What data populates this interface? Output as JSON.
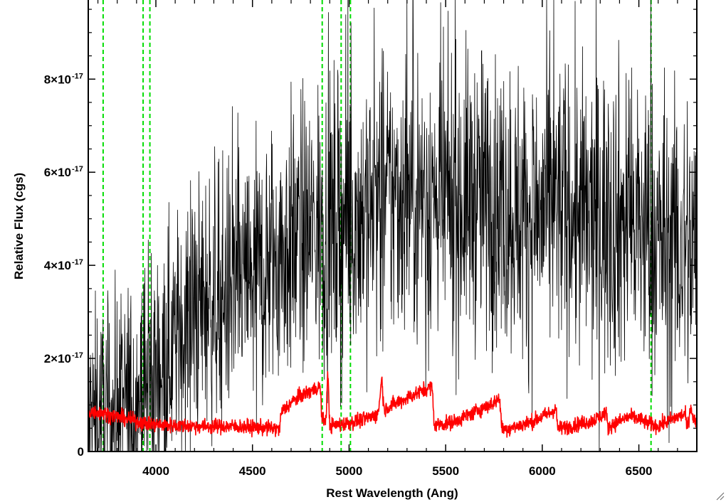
{
  "chart_data": {
    "type": "line",
    "title": "",
    "xlabel": "Rest Wavelength (Ang)",
    "ylabel": "Relative Flux (cgs)",
    "xlim": [
      3650,
      6800
    ],
    "ylim": [
      0,
      9.7e-17
    ],
    "grid": false,
    "x_ticks": [
      {
        "value": 4000,
        "label": "4000"
      },
      {
        "value": 4500,
        "label": "4500"
      },
      {
        "value": 5000,
        "label": "5000"
      },
      {
        "value": 5500,
        "label": "5500"
      },
      {
        "value": 6000,
        "label": "6000"
      },
      {
        "value": 6500,
        "label": "6500"
      }
    ],
    "y_ticks": [
      {
        "value": 0,
        "label": "0",
        "exponent": ""
      },
      {
        "value": 2e-17,
        "label": "2×10",
        "exponent": "-17"
      },
      {
        "value": 4e-17,
        "label": "4×10",
        "exponent": "-17"
      },
      {
        "value": 6e-17,
        "label": "6×10",
        "exponent": "-17"
      },
      {
        "value": 8e-17,
        "label": "8×10",
        "exponent": "-17"
      }
    ],
    "vertical_lines": [
      3727,
      3934,
      3969,
      4861,
      4959,
      5007,
      6563
    ],
    "vline_color": "#00dd00",
    "series": [
      {
        "color": "#000000",
        "x": [
          3650,
          3700,
          3750,
          3800,
          3850,
          3900,
          3950,
          4000,
          4050,
          4100,
          4150,
          4200,
          4250,
          4300,
          4350,
          4400,
          4450,
          4500,
          4550,
          4600,
          4650,
          4700,
          4750,
          4800,
          4850,
          4900,
          4950,
          5000,
          5050,
          5100,
          5150,
          5200,
          5250,
          5300,
          5350,
          5400,
          5450,
          5500,
          5550,
          5600,
          5650,
          5700,
          5750,
          5800,
          5850,
          5900,
          5950,
          6000,
          6050,
          6100,
          6150,
          6200,
          6250,
          6300,
          6350,
          6400,
          6450,
          6500,
          6550,
          6600,
          6650,
          6700,
          6750,
          6800
        ],
        "y": [
          6e-18,
          8e-18,
          7e-18,
          9e-18,
          1e-17,
          1.2e-17,
          1.4e-17,
          1.7e-17,
          2.1e-17,
          2.4e-17,
          2.8e-17,
          3e-17,
          3.2e-17,
          3.3e-17,
          3.4e-17,
          3.5e-17,
          3.6e-17,
          3.7e-17,
          3.9e-17,
          4.1e-17,
          4.3e-17,
          4.5e-17,
          4.6e-17,
          4.7e-17,
          4.8e-17,
          4.8e-17,
          4.9e-17,
          5e-17,
          5.1e-17,
          5.2e-17,
          5.3e-17,
          5.4e-17,
          5.5e-17,
          5.6e-17,
          5.6e-17,
          5.5e-17,
          5.4e-17,
          5.3e-17,
          5.3e-17,
          5.4e-17,
          5.5e-17,
          5.5e-17,
          5.4e-17,
          5.3e-17,
          5.2e-17,
          5.1e-17,
          5e-17,
          5.1e-17,
          5.2e-17,
          5.3e-17,
          5.2e-17,
          5e-17,
          4.9e-17,
          5e-17,
          5.1e-17,
          5e-17,
          4.9e-17,
          4.8e-17,
          4.7e-17,
          4.5e-17,
          4.4e-17,
          4.3e-17,
          4.4e-17,
          4.3e-17
        ],
        "noise": [
          1.2e-17,
          1.2e-17,
          1.2e-17,
          1.3e-17,
          1.3e-17,
          1.3e-17,
          1.3e-17,
          1.3e-17,
          1.3e-17,
          1.3e-17,
          1.3e-17,
          1.4e-17,
          1.4e-17,
          1.4e-17,
          1.4e-17,
          1.4e-17,
          1.4e-17,
          1.5e-17,
          1.5e-17,
          1.5e-17,
          1.5e-17,
          1.5e-17,
          1.5e-17,
          1.5e-17,
          1.6e-17,
          1.6e-17,
          1.6e-17,
          1.6e-17,
          1.6e-17,
          1.6e-17,
          1.6e-17,
          1.6e-17,
          1.6e-17,
          1.6e-17,
          1.6e-17,
          1.6e-17,
          1.6e-17,
          1.6e-17,
          1.6e-17,
          1.6e-17,
          1.6e-17,
          1.6e-17,
          1.6e-17,
          1.6e-17,
          1.6e-17,
          1.6e-17,
          1.6e-17,
          1.6e-17,
          1.6e-17,
          1.6e-17,
          1.6e-17,
          1.7e-17,
          1.7e-17,
          1.7e-17,
          1.7e-17,
          1.7e-17,
          1.7e-17,
          1.7e-17,
          1.7e-17,
          1.7e-17,
          1.7e-17,
          1.7e-17,
          1.7e-17,
          1.7e-17
        ]
      },
      {
        "color": "#ff0000",
        "x": [
          3650,
          3700,
          3750,
          3800,
          3850,
          3900,
          3950,
          4000,
          4100,
          4200,
          4300,
          4400,
          4500,
          4600,
          4640,
          4650,
          4700,
          4750,
          4800,
          4850,
          4860,
          4870,
          4880,
          4890,
          4900,
          4950,
          5000,
          5050,
          5100,
          5150,
          5170,
          5180,
          5200,
          5250,
          5300,
          5350,
          5400,
          5430,
          5440,
          5450,
          5500,
          5550,
          5600,
          5650,
          5700,
          5750,
          5780,
          5790,
          5800,
          5850,
          5900,
          5950,
          6000,
          6050,
          6070,
          6080,
          6100,
          6150,
          6200,
          6250,
          6300,
          6330,
          6340,
          6350,
          6400,
          6450,
          6500,
          6550,
          6600,
          6650,
          6700,
          6740,
          6750,
          6770,
          6780,
          6800
        ],
        "y": [
          8.5e-18,
          8.5e-18,
          8e-18,
          7.5e-18,
          7e-18,
          6.5e-18,
          6e-18,
          5.8e-18,
          5.6e-18,
          5.5e-18,
          5.4e-18,
          5.4e-18,
          5.2e-18,
          5e-18,
          4.8e-18,
          8.5e-18,
          1.05e-17,
          1.2e-17,
          1.3e-17,
          1.4e-17,
          7e-18,
          6.5e-18,
          7e-18,
          1.7e-17,
          5.5e-18,
          5.8e-18,
          6.2e-18,
          6.6e-18,
          7.2e-18,
          8e-18,
          1.6e-17,
          9e-18,
          9.5e-18,
          1.05e-17,
          1.15e-17,
          1.25e-17,
          1.35e-17,
          1.4e-17,
          6e-18,
          5.8e-18,
          6e-18,
          6.5e-18,
          7.5e-18,
          8.5e-18,
          9.5e-18,
          1.05e-17,
          1.15e-17,
          5e-18,
          4.8e-18,
          5.2e-18,
          5.8e-18,
          6.5e-18,
          7.5e-18,
          8.5e-18,
          9.5e-18,
          5e-18,
          5e-18,
          5.5e-18,
          6e-18,
          6.5e-18,
          7.5e-18,
          8.5e-18,
          5e-18,
          5.5e-18,
          6.5e-18,
          7.5e-18,
          7e-18,
          6e-18,
          5.5e-18,
          6.5e-18,
          7.5e-18,
          8e-18,
          5e-18,
          1e-17,
          7e-18,
          6e-18
        ],
        "noise": 8e-19
      }
    ]
  }
}
